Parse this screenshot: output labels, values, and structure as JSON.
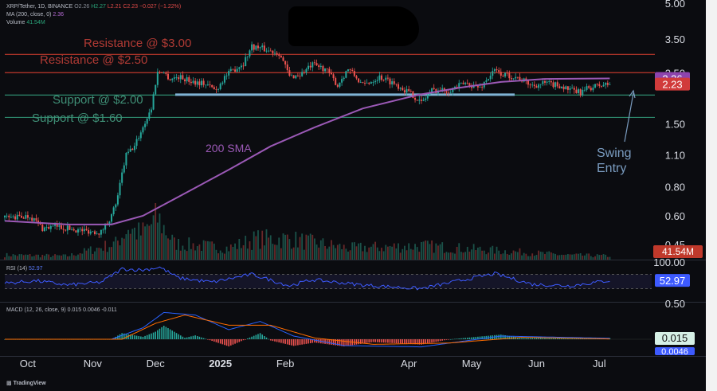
{
  "header": {
    "symbol": "XRP/Tether, 1D, BINANCE",
    "ohlc": {
      "o": "O2.26",
      "h": "H2.27",
      "l": "L2.21",
      "c": "C2.23",
      "chg": "−0.027 (−1.22%)"
    },
    "ma_label": "MA (200, close, 0)",
    "ma_value": "2.36",
    "volume_label": "Volume",
    "volume_value": "41.54M"
  },
  "footer": {
    "brand": "TradingView"
  },
  "colors": {
    "bg": "#0b0c10",
    "up": "#26a69a",
    "down": "#ef5350",
    "sma": "#9b59b6",
    "rsi": "#3d5afe",
    "macd": "#2962ff",
    "signal": "#ff6d00",
    "resistance": "#c0392b",
    "support": "#2e8b6e",
    "support_band": "#7fb3d5",
    "annotation": "#7a9cc0"
  },
  "chart_data": [
    {
      "type": "candlestick",
      "title": "XRP/Tether, 1D, BINANCE",
      "scale": "log",
      "ylim": [
        0.4,
        5.0
      ],
      "x_ticks": [
        "Oct",
        "Nov",
        "Dec",
        "2025",
        "Feb",
        "Apr",
        "May",
        "Jun",
        "Jul"
      ],
      "y_ticks": [
        "5.00",
        "3.50",
        "2.50",
        "1.50",
        "1.10",
        "0.80",
        "0.60",
        "0.45"
      ],
      "price_path": [
        [
          "2024-09-25",
          0.59
        ],
        [
          "2024-10-02",
          0.6
        ],
        [
          "2024-10-08",
          0.53
        ],
        [
          "2024-10-15",
          0.54
        ],
        [
          "2024-10-25",
          0.52
        ],
        [
          "2024-11-05",
          0.51
        ],
        [
          "2024-11-10",
          0.6
        ],
        [
          "2024-11-13",
          0.72
        ],
        [
          "2024-11-17",
          1.1
        ],
        [
          "2024-11-21",
          1.2
        ],
        [
          "2024-11-25",
          1.45
        ],
        [
          "2024-11-29",
          1.75
        ],
        [
          "2024-12-02",
          2.5
        ],
        [
          "2024-12-04",
          2.55
        ],
        [
          "2024-12-08",
          2.35
        ],
        [
          "2024-12-12",
          2.4
        ],
        [
          "2024-12-18",
          2.3
        ],
        [
          "2024-12-24",
          2.25
        ],
        [
          "2024-12-30",
          2.1
        ],
        [
          "2025-01-03",
          2.4
        ],
        [
          "2025-01-08",
          2.6
        ],
        [
          "2025-01-12",
          2.75
        ],
        [
          "2025-01-16",
          3.25
        ],
        [
          "2025-01-20",
          3.2
        ],
        [
          "2025-01-25",
          3.1
        ],
        [
          "2025-01-29",
          3.05
        ],
        [
          "2025-02-03",
          2.4
        ],
        [
          "2025-02-08",
          2.45
        ],
        [
          "2025-02-14",
          2.7
        ],
        [
          "2025-02-20",
          2.6
        ],
        [
          "2025-02-26",
          2.2
        ],
        [
          "2025-03-03",
          2.6
        ],
        [
          "2025-03-10",
          2.2
        ],
        [
          "2025-03-18",
          2.4
        ],
        [
          "2025-03-25",
          2.25
        ],
        [
          "2025-04-03",
          2.0
        ],
        [
          "2025-04-07",
          1.85
        ],
        [
          "2025-04-12",
          2.1
        ],
        [
          "2025-04-20",
          2.1
        ],
        [
          "2025-04-28",
          2.25
        ],
        [
          "2025-05-05",
          2.15
        ],
        [
          "2025-05-12",
          2.55
        ],
        [
          "2025-05-16",
          2.45
        ],
        [
          "2025-05-22",
          2.4
        ],
        [
          "2025-05-30",
          2.2
        ],
        [
          "2025-06-05",
          2.25
        ],
        [
          "2025-06-12",
          2.2
        ],
        [
          "2025-06-17",
          2.1
        ],
        [
          "2025-06-22",
          2.05
        ],
        [
          "2025-06-26",
          2.15
        ],
        [
          "2025-07-01",
          2.2
        ],
        [
          "2025-07-06",
          2.23
        ]
      ],
      "sma200": [
        [
          "2024-09-20",
          0.57
        ],
        [
          "2024-10-20",
          0.55
        ],
        [
          "2024-11-10",
          0.55
        ],
        [
          "2024-11-25",
          0.6
        ],
        [
          "2024-12-15",
          0.75
        ],
        [
          "2025-01-05",
          0.95
        ],
        [
          "2025-01-25",
          1.2
        ],
        [
          "2025-02-15",
          1.45
        ],
        [
          "2025-03-10",
          1.75
        ],
        [
          "2025-04-05",
          2.0
        ],
        [
          "2025-04-25",
          2.15
        ],
        [
          "2025-05-15",
          2.28
        ],
        [
          "2025-06-05",
          2.35
        ],
        [
          "2025-07-06",
          2.36
        ]
      ],
      "levels": [
        {
          "label": "Resistance @ $3.00",
          "value": 3.0,
          "kind": "resistance"
        },
        {
          "label": "Resistance @ $2.50",
          "value": 2.5,
          "kind": "resistance"
        },
        {
          "label": "Support @ $2.00",
          "value": 2.0,
          "kind": "support"
        },
        {
          "label": "Support @ $1.60",
          "value": 1.6,
          "kind": "support"
        }
      ],
      "annotations": [
        {
          "text": "200 SMA",
          "kind": "sma-label"
        },
        {
          "text": "Swing",
          "kind": "entry-label"
        },
        {
          "text": "Entry",
          "kind": "entry-label"
        }
      ],
      "price_badges": [
        {
          "value": "2.36",
          "kind": "sma"
        },
        {
          "value": "2.23",
          "kind": "last"
        }
      ]
    },
    {
      "type": "bar",
      "title": "Volume",
      "last_value": "41.54M",
      "profile": [
        [
          "2024-09-20",
          0.1
        ],
        [
          "2024-10-20",
          0.08
        ],
        [
          "2024-11-12",
          0.35
        ],
        [
          "2024-11-18",
          0.7
        ],
        [
          "2024-11-24",
          0.55
        ],
        [
          "2024-12-02",
          0.9
        ],
        [
          "2024-12-10",
          0.35
        ],
        [
          "2025-01-05",
          0.25
        ],
        [
          "2025-01-18",
          0.45
        ],
        [
          "2025-02-03",
          0.45
        ],
        [
          "2025-03-03",
          0.25
        ],
        [
          "2025-04-07",
          0.3
        ],
        [
          "2025-05-12",
          0.2
        ],
        [
          "2025-06-15",
          0.1
        ],
        [
          "2025-07-06",
          0.08
        ]
      ]
    },
    {
      "type": "line",
      "title": "RSI (14)",
      "current": "52.97",
      "ylim": [
        0,
        100
      ],
      "y_ticks": [
        "100.00",
        "0.50"
      ],
      "series": [
        {
          "values": [
            [
              "2024-09-20",
              45
            ],
            [
              "2024-10-05",
              52
            ],
            [
              "2024-10-20",
              40
            ],
            [
              "2024-11-05",
              48
            ],
            [
              "2024-11-15",
              85
            ],
            [
              "2024-11-25",
              82
            ],
            [
              "2024-12-03",
              90
            ],
            [
              "2024-12-12",
              60
            ],
            [
              "2024-12-28",
              48
            ],
            [
              "2025-01-16",
              70
            ],
            [
              "2025-02-03",
              38
            ],
            [
              "2025-02-14",
              55
            ],
            [
              "2025-03-10",
              40
            ],
            [
              "2025-04-07",
              30
            ],
            [
              "2025-04-25",
              52
            ],
            [
              "2025-05-12",
              72
            ],
            [
              "2025-05-30",
              42
            ],
            [
              "2025-06-17",
              38
            ],
            [
              "2025-07-06",
              52.97
            ]
          ]
        }
      ]
    },
    {
      "type": "line",
      "title": "MACD",
      "legend": "MACD (12, 26, close, 9) 0.015 0.0046 -0.011",
      "current": [
        "0.015",
        "0.0046"
      ],
      "series": [
        {
          "values": [
            [
              "2024-09-20",
              0.0
            ],
            [
              "2024-11-10",
              0.0
            ],
            [
              "2024-11-25",
              0.18
            ],
            [
              "2024-12-05",
              0.42
            ],
            [
              "2024-12-20",
              0.38
            ],
            [
              "2025-01-05",
              0.15
            ],
            [
              "2025-01-20",
              0.28
            ],
            [
              "2025-02-05",
              0.05
            ],
            [
              "2025-03-01",
              -0.1
            ],
            [
              "2025-04-07",
              -0.12
            ],
            [
              "2025-05-15",
              0.05
            ],
            [
              "2025-07-06",
              0.015
            ]
          ]
        },
        {
          "values": [
            [
              "2024-09-20",
              0.0
            ],
            [
              "2024-11-15",
              0.0
            ],
            [
              "2024-12-01",
              0.25
            ],
            [
              "2024-12-15",
              0.38
            ],
            [
              "2025-01-05",
              0.22
            ],
            [
              "2025-01-25",
              0.22
            ],
            [
              "2025-02-15",
              0.02
            ],
            [
              "2025-03-15",
              -0.08
            ],
            [
              "2025-04-20",
              -0.06
            ],
            [
              "2025-05-25",
              0.03
            ],
            [
              "2025-07-06",
              0.0046
            ]
          ]
        }
      ]
    }
  ]
}
